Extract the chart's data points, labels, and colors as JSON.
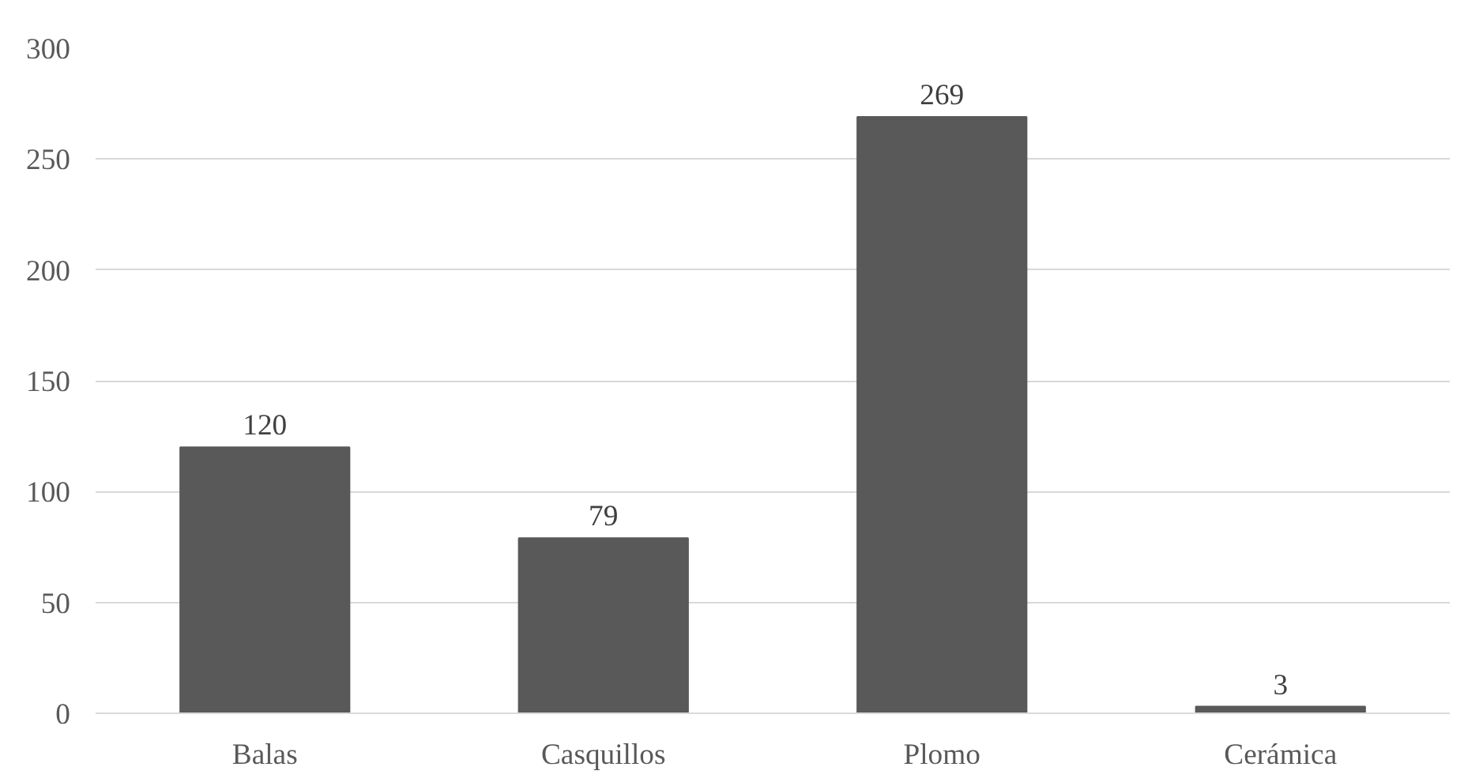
{
  "chart_data": {
    "type": "bar",
    "categories": [
      "Balas",
      "Casquillos",
      "Plomo",
      "Cerámica"
    ],
    "values": [
      120,
      79,
      269,
      3
    ],
    "color": "#595959",
    "ylim": [
      0,
      300
    ],
    "yticks": [
      0,
      50,
      100,
      150,
      200,
      250,
      300
    ],
    "grid": "y",
    "data_labels": true
  }
}
